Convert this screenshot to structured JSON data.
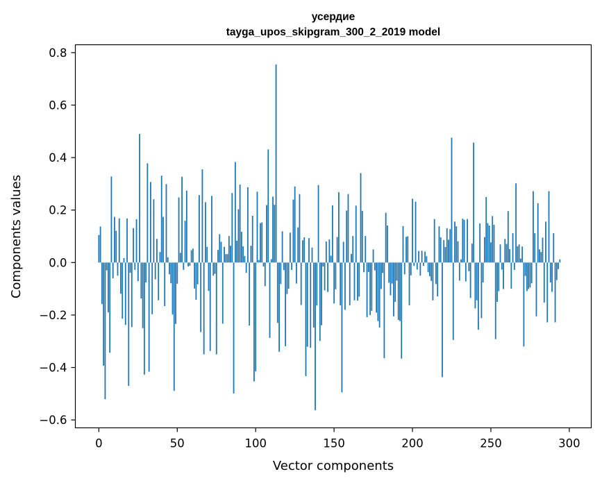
{
  "chart_data": {
    "type": "bar",
    "title": "усердие",
    "subtitle": "tayga_upos_skipgram_300_2_2019 model",
    "xlabel": "Vector components",
    "ylabel": "Components values",
    "xlim": [
      -15,
      314
    ],
    "ylim": [
      -0.63,
      0.83
    ],
    "xticks": [
      0,
      50,
      100,
      150,
      200,
      250,
      300
    ],
    "xtick_labels": [
      "0",
      "50",
      "100",
      "150",
      "200",
      "250",
      "300"
    ],
    "yticks": [
      -0.6,
      -0.4,
      -0.2,
      0.0,
      0.2,
      0.4,
      0.6,
      0.8
    ],
    "ytick_labels": [
      "−0.6",
      "−0.4",
      "−0.2",
      "0.0",
      "0.2",
      "0.4",
      "0.6",
      "0.8"
    ],
    "grid": false,
    "bar_color": "#1f77b4",
    "series": [
      {
        "values": [
          0.105,
          0.137,
          -0.158,
          -0.393,
          -0.521,
          -0.03,
          -0.19,
          -0.344,
          0.328,
          -0.06,
          0.174,
          0.121,
          -0.05,
          0.168,
          -0.119,
          -0.214,
          0.017,
          -0.238,
          0.168,
          -0.47,
          -0.039,
          -0.246,
          0.131,
          -0.028,
          0.165,
          -0.071,
          0.49,
          -0.137,
          -0.25,
          -0.427,
          -0.076,
          0.378,
          -0.416,
          0.307,
          -0.197,
          0.241,
          -0.064,
          0.09,
          -0.144,
          0.04,
          0.331,
          0.174,
          -0.166,
          0.299,
          0.02,
          -0.045,
          -0.079,
          -0.198,
          -0.489,
          -0.234,
          -0.081,
          0.248,
          0.037,
          0.327,
          -0.028,
          0.159,
          0.274,
          -0.015,
          -0.012,
          0.047,
          0.053,
          -0.099,
          -0.142,
          -0.083,
          0.257,
          -0.265,
          0.355,
          -0.35,
          0.23,
          0.06,
          -0.108,
          -0.337,
          0.254,
          -0.05,
          -0.043,
          -0.35,
          0.048,
          0.108,
          0.079,
          -0.233,
          0.06,
          0.032,
          0.032,
          0.101,
          0.064,
          0.265,
          -0.499,
          0.383,
          0.083,
          0.203,
          0.297,
          0.117,
          0.062,
          0.025,
          -0.039,
          0.287,
          -0.24,
          0.064,
          0.178,
          -0.453,
          -0.415,
          0.27,
          0.009,
          0.15,
          0.153,
          -0.015,
          -0.09,
          0.219,
          0.431,
          -0.287,
          0.013,
          0.251,
          0.22,
          0.755,
          -0.23,
          -0.34,
          -0.082,
          0.119,
          -0.029,
          -0.319,
          -0.12,
          -0.1,
          0.114,
          -0.028,
          0.24,
          0.29,
          -0.08,
          0.134,
          0.261,
          -0.162,
          0.085,
          0.096,
          -0.433,
          -0.321,
          0.093,
          -0.325,
          0.057,
          -0.248,
          -0.563,
          -0.164,
          0.295,
          -0.299,
          -0.239,
          -0.015,
          -0.106,
          0.08,
          -0.112,
          0.088,
          0.026,
          0.218,
          -0.156,
          -0.102,
          0.097,
          0.268,
          -0.163,
          -0.495,
          0.079,
          -0.18,
          0.198,
          0.261,
          -0.163,
          0.033,
          0.101,
          -0.144,
          0.217,
          -0.145,
          -0.13,
          0.341,
          0.197,
          -0.037,
          0.101,
          -0.208,
          -0.036,
          -0.2,
          -0.184,
          0.05,
          -0.03,
          -0.191,
          -0.223,
          -0.248,
          -0.101,
          -0.04,
          -0.365,
          0.19,
          0.141,
          -0.077,
          -0.125,
          -0.08,
          -0.205,
          -0.15,
          -0.069,
          -0.219,
          -0.223,
          -0.366,
          0.139,
          -0.045,
          0.098,
          0.1,
          -0.163,
          -0.049,
          0.243,
          -0.013,
          0.232,
          -0.027,
          0.044,
          -0.05,
          0.045,
          -0.013,
          0.042,
          0.024,
          -0.037,
          -0.052,
          -0.07,
          -0.144,
          0.166,
          -0.082,
          -0.129,
          0.138,
          0.096,
          -0.437,
          0.086,
          0.059,
          0.131,
          0.087,
          0.127,
          0.476,
          -0.295,
          0.156,
          0.138,
          0.081,
          -0.069,
          0.012,
          0.167,
          0.163,
          -0.072,
          0.166,
          -0.033,
          -0.135,
          0.072,
          0.457,
          -0.175,
          -0.144,
          -0.256,
          0.149,
          -0.212,
          -0.076,
          0.097,
          0.25,
          0.15,
          0.141,
          0.077,
          0.177,
          0.144,
          -0.292,
          -0.15,
          -0.109,
          0.069,
          -0.027,
          -0.101,
          0.09,
          0.071,
          0.196,
          0.051,
          -0.1,
          0.112,
          -0.028,
          0.302,
          0.062,
          0.069,
          0.015,
          0.061,
          -0.32,
          -0.051,
          -0.109,
          -0.101,
          -0.095,
          -0.079,
          0.272,
          0.112,
          -0.205,
          0.226,
          0.05,
          0.04,
          0.095,
          -0.153,
          0.156,
          -0.228,
          0.272,
          -0.076,
          -0.112,
          0.112,
          -0.228,
          -0.067,
          -0.025,
          0.012
        ]
      }
    ]
  }
}
